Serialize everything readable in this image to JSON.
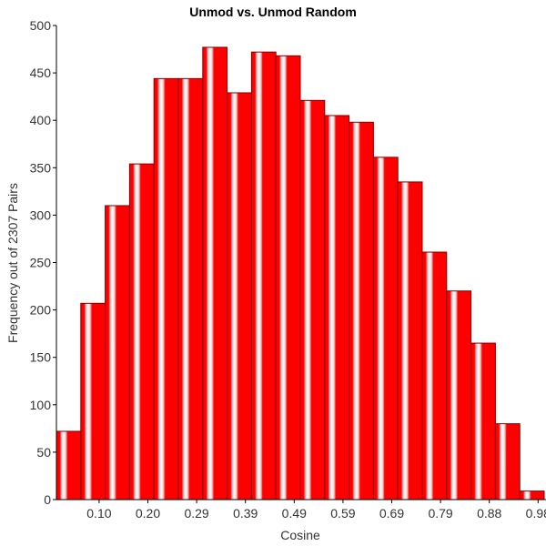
{
  "chart_data": {
    "type": "bar",
    "title": "Unmod vs. Unmod Random",
    "xlabel": "Cosine",
    "ylabel": "Frequency out of 2307 Pairs",
    "ylim": [
      0,
      500
    ],
    "yticks": [
      "0",
      "50",
      "100",
      "150",
      "200",
      "250",
      "300",
      "350",
      "400",
      "450",
      "500"
    ],
    "xticks": [
      "0.10",
      "0.20",
      "0.29",
      "0.39",
      "0.49",
      "0.59",
      "0.69",
      "0.79",
      "0.88",
      "0.98"
    ],
    "values": [
      72,
      207,
      310,
      354,
      444,
      444,
      477,
      429,
      472,
      468,
      421,
      405,
      398,
      361,
      335,
      261,
      220,
      165,
      80,
      9
    ],
    "bar_color": "#ff0000",
    "bar_edge_color": "#800000",
    "grid": false
  }
}
